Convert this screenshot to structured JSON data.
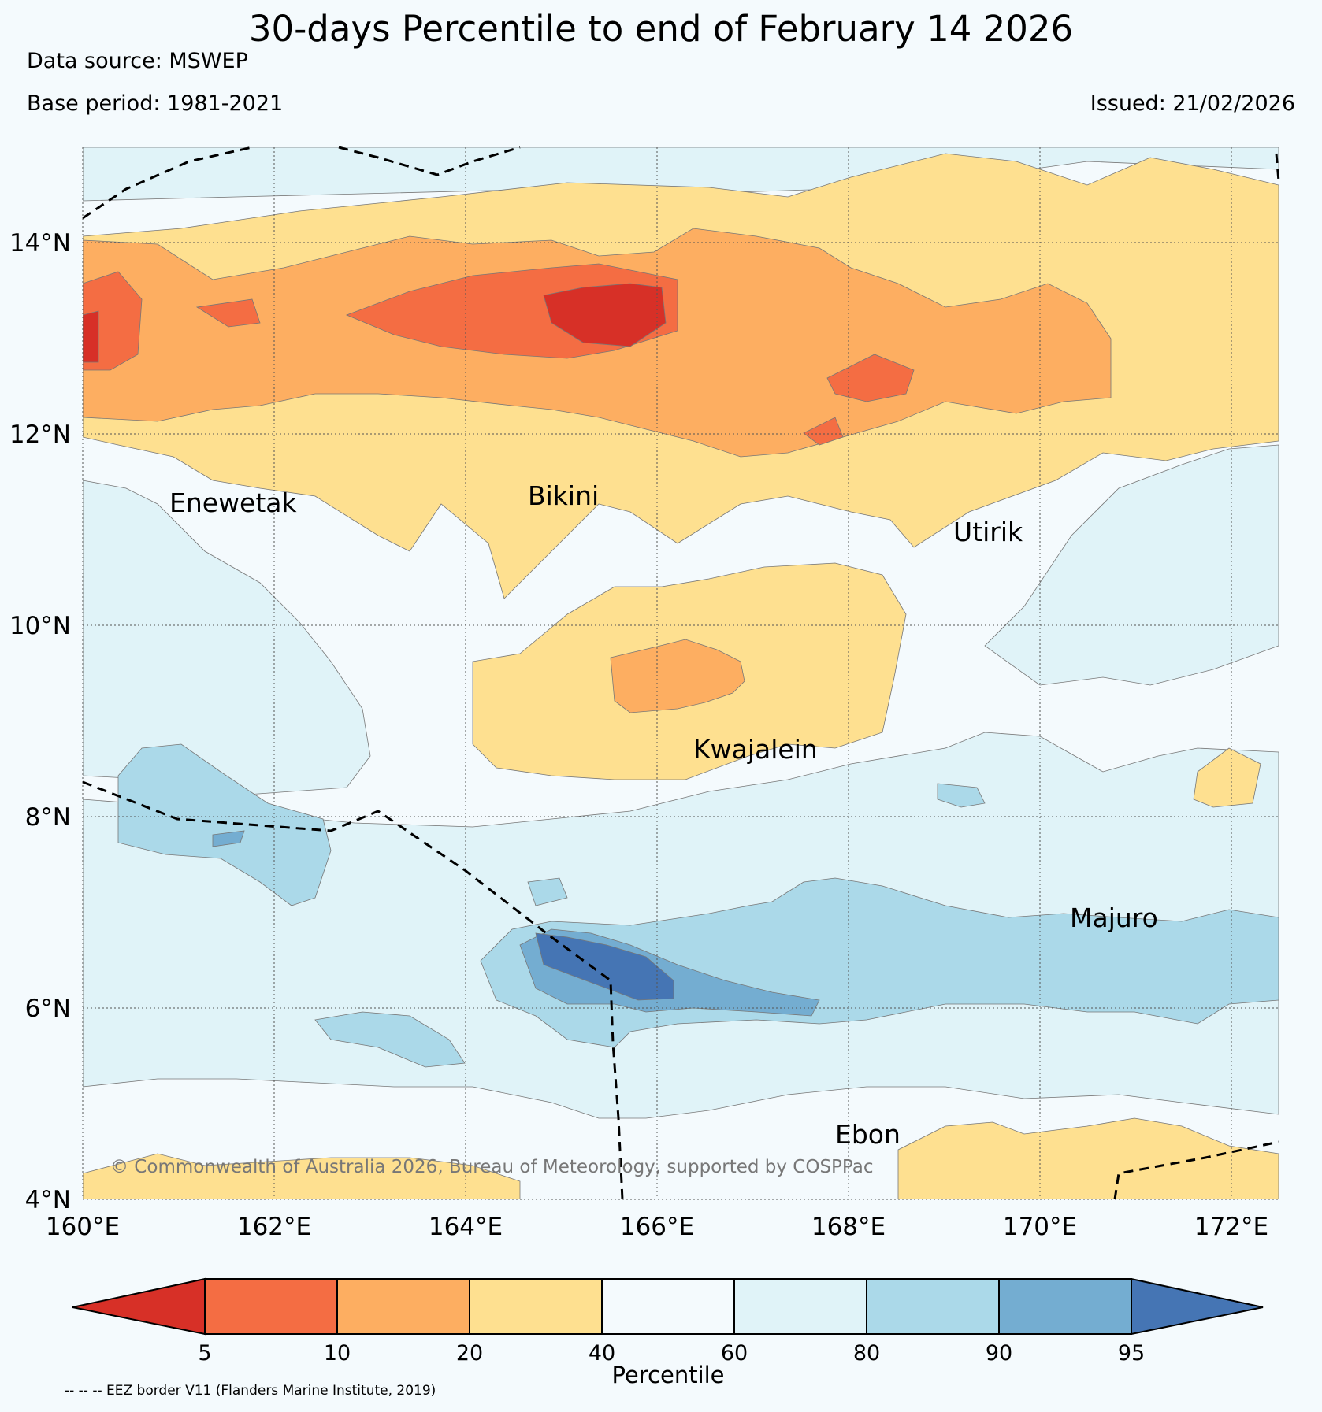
{
  "header": {
    "title": "30-days Percentile to end of February 14 2026",
    "data_source": "Data source: MSWEP",
    "base_period": "Base period: 1981-2021",
    "issued": "Issued: 21/02/2026"
  },
  "map": {
    "lon_range": [
      160,
      172.5
    ],
    "lat_range": [
      4,
      15
    ],
    "lon_ticks": [
      "160°E",
      "162°E",
      "164°E",
      "166°E",
      "168°E",
      "170°E",
      "172°E"
    ],
    "lat_ticks": [
      "4°N",
      "6°N",
      "8°N",
      "10°N",
      "12°N",
      "14°N"
    ],
    "grid": true,
    "copyright": "© Commonwealth of Australia 2026, Bureau of Meteorology, supported by COSPPac",
    "places": [
      {
        "id": "enewetak",
        "name": "Enewetak"
      },
      {
        "id": "bikini",
        "name": "Bikini"
      },
      {
        "id": "utirik",
        "name": "Utirik"
      },
      {
        "id": "kwajalein",
        "name": "Kwajalein"
      },
      {
        "id": "majuro",
        "name": "Majuro"
      },
      {
        "id": "ebon",
        "name": "Ebon"
      }
    ]
  },
  "colorbar": {
    "label": "Percentile",
    "ticks": [
      "5",
      "10",
      "20",
      "40",
      "60",
      "80",
      "90",
      "95"
    ],
    "colors": [
      "#d73027",
      "#f46d43",
      "#fdae61",
      "#fee090",
      "#f4fafd",
      "#e0f3f8",
      "#abd9e9",
      "#74add1",
      "#4575b4"
    ]
  },
  "legend": {
    "eez_note": "-- -- -- EEZ border V11 (Flanders Marine Institute, 2019)"
  }
}
